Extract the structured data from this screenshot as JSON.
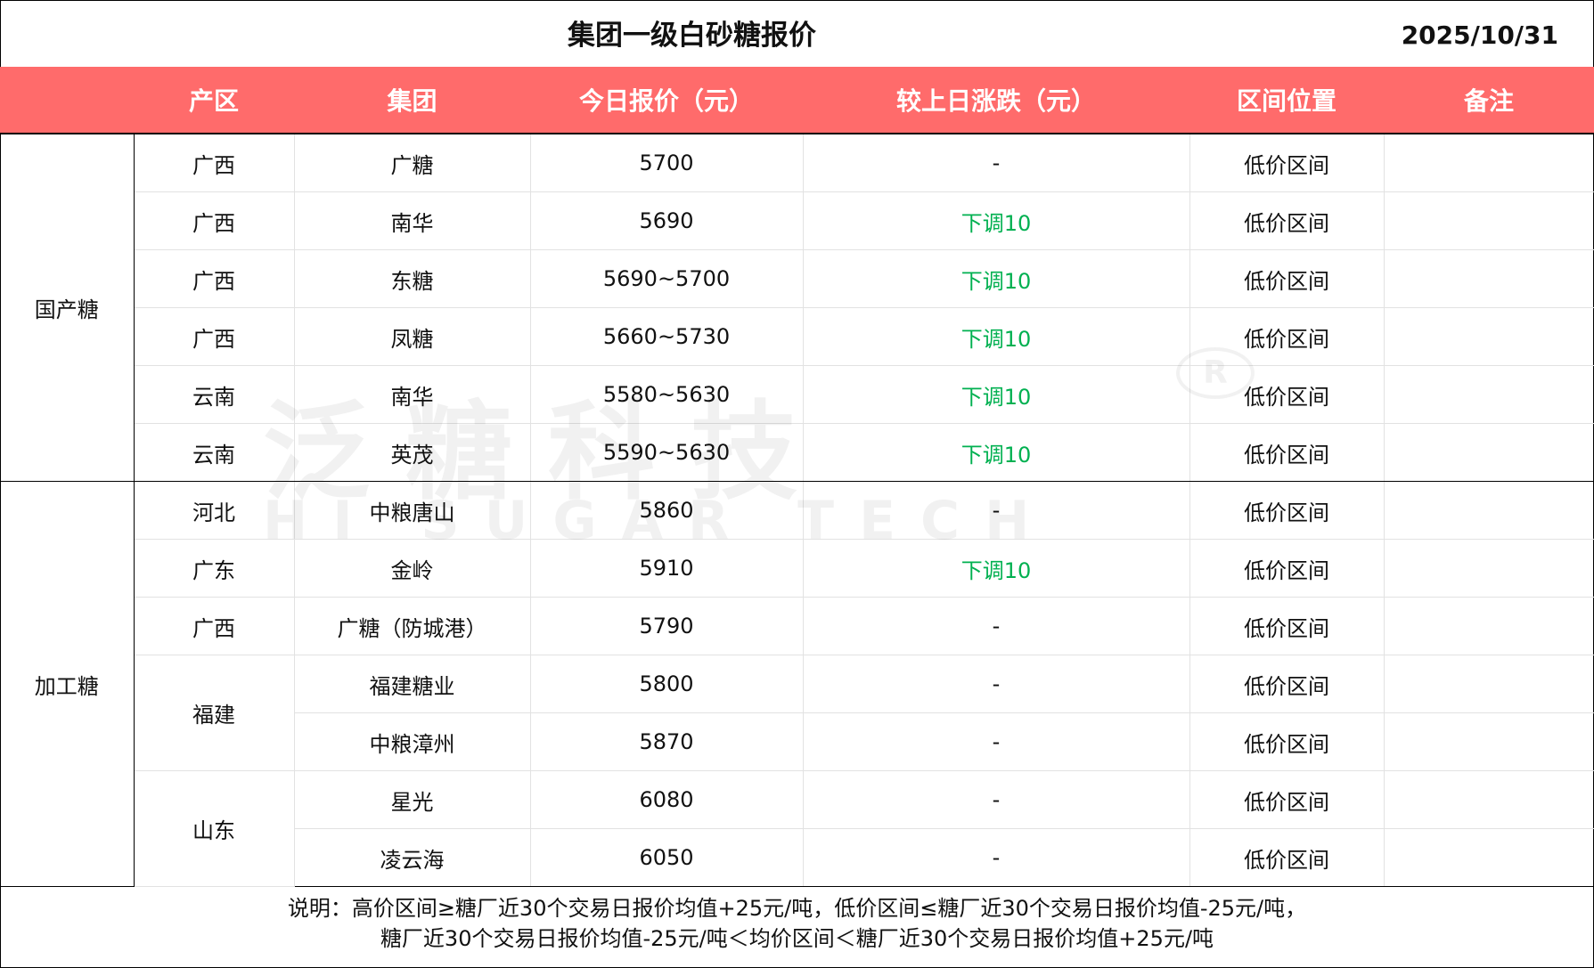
{
  "title": "集团一级白砂糖报价",
  "date": "2025/10/31",
  "colors": {
    "header_bg": "#FF6B6B",
    "down": "#00B050"
  },
  "headers": [
    "产区",
    "集团",
    "今日报价（元）",
    "较上日涨跌（元）",
    "区间位置",
    "备注"
  ],
  "categories": {
    "domestic": "国产糖",
    "processed": "加工糖"
  },
  "rows": [
    {
      "region": "广西",
      "group": "广糖",
      "price": "5700",
      "change": "-",
      "position": "低价区间",
      "note": ""
    },
    {
      "region": "广西",
      "group": "南华",
      "price": "5690",
      "change": "下调10",
      "position": "低价区间",
      "note": ""
    },
    {
      "region": "广西",
      "group": "东糖",
      "price": "5690~5700",
      "change": "下调10",
      "position": "低价区间",
      "note": ""
    },
    {
      "region": "广西",
      "group": "凤糖",
      "price": "5660~5730",
      "change": "下调10",
      "position": "低价区间",
      "note": ""
    },
    {
      "region": "云南",
      "group": "南华",
      "price": "5580~5630",
      "change": "下调10",
      "position": "低价区间",
      "note": ""
    },
    {
      "region": "云南",
      "group": "英茂",
      "price": "5590~5630",
      "change": "下调10",
      "position": "低价区间",
      "note": ""
    },
    {
      "region": "河北",
      "group": "中粮唐山",
      "price": "5860",
      "change": "-",
      "position": "低价区间",
      "note": ""
    },
    {
      "region": "广东",
      "group": "金岭",
      "price": "5910",
      "change": "下调10",
      "position": "低价区间",
      "note": ""
    },
    {
      "region": "广西",
      "group": "广糖（防城港）",
      "price": "5790",
      "change": "-",
      "position": "低价区间",
      "note": ""
    },
    {
      "region": "福建",
      "group": "福建糖业",
      "price": "5800",
      "change": "-",
      "position": "低价区间",
      "note": ""
    },
    {
      "region": "福建",
      "group": "中粮漳州",
      "price": "5870",
      "change": "-",
      "position": "低价区间",
      "note": ""
    },
    {
      "region": "山东",
      "group": "星光",
      "price": "6080",
      "change": "-",
      "position": "低价区间",
      "note": ""
    },
    {
      "region": "山东",
      "group": "凌云海",
      "price": "6050",
      "change": "-",
      "position": "低价区间",
      "note": ""
    }
  ],
  "footer": {
    "line1": "说明：高价区间≥糖厂近30个交易日报价均值+25元/吨，低价区间≤糖厂近30个交易日报价均值-25元/吨，",
    "line2": "糖厂近30个交易日报价均值-25元/吨＜均价区间＜糖厂近30个交易日报价均值+25元/吨"
  },
  "watermark": {
    "cn": "泛糖科技",
    "en": "HI SUGAR TECH",
    "mark": "®"
  }
}
